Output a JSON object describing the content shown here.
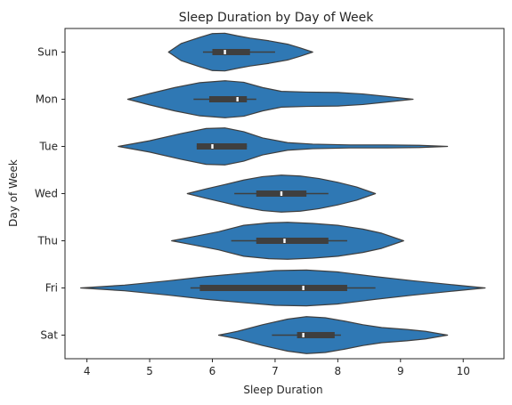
{
  "chart_data": {
    "type": "violin",
    "title": "Sleep Duration by Day of Week",
    "xlabel": "Sleep Duration",
    "ylabel": "Day of Week",
    "xlim": [
      3.65,
      10.65
    ],
    "xticks": [
      4,
      5,
      6,
      7,
      8,
      9,
      10
    ],
    "orientation": "horizontal",
    "grid": false,
    "color": "#2f78b4",
    "edge_color": "#3f3f3f",
    "categories": [
      "Sun",
      "Mon",
      "Tue",
      "Wed",
      "Thu",
      "Fri",
      "Sat"
    ],
    "violins": [
      {
        "label": "Sun",
        "min": 5.3,
        "max": 7.6,
        "profile": [
          [
            5.3,
            0.0
          ],
          [
            5.5,
            0.45
          ],
          [
            5.8,
            0.78
          ],
          [
            6.0,
            0.98
          ],
          [
            6.2,
            1.0
          ],
          [
            6.4,
            0.86
          ],
          [
            6.6,
            0.74
          ],
          [
            6.9,
            0.6
          ],
          [
            7.2,
            0.42
          ],
          [
            7.4,
            0.22
          ],
          [
            7.6,
            0.0
          ]
        ],
        "whisker_low": 5.85,
        "q1": 6.0,
        "median": 6.2,
        "q3": 6.6,
        "whisker_high": 7.0
      },
      {
        "label": "Mon",
        "min": 4.65,
        "max": 9.2,
        "profile": [
          [
            4.65,
            0.0
          ],
          [
            5.0,
            0.3
          ],
          [
            5.4,
            0.62
          ],
          [
            5.8,
            0.88
          ],
          [
            6.2,
            0.98
          ],
          [
            6.5,
            0.9
          ],
          [
            6.8,
            0.62
          ],
          [
            7.1,
            0.42
          ],
          [
            7.5,
            0.38
          ],
          [
            8.0,
            0.36
          ],
          [
            8.4,
            0.28
          ],
          [
            8.8,
            0.14
          ],
          [
            9.2,
            0.0
          ]
        ],
        "whisker_low": 5.7,
        "q1": 5.95,
        "median": 6.4,
        "q3": 6.55,
        "whisker_high": 6.7
      },
      {
        "label": "Tue",
        "min": 4.5,
        "max": 9.75,
        "profile": [
          [
            4.5,
            0.0
          ],
          [
            5.0,
            0.3
          ],
          [
            5.5,
            0.68
          ],
          [
            5.9,
            0.95
          ],
          [
            6.2,
            0.98
          ],
          [
            6.5,
            0.78
          ],
          [
            6.8,
            0.45
          ],
          [
            7.2,
            0.2
          ],
          [
            7.6,
            0.12
          ],
          [
            8.2,
            0.08
          ],
          [
            8.8,
            0.08
          ],
          [
            9.3,
            0.06
          ],
          [
            9.75,
            0.0
          ]
        ],
        "whisker_low": 5.75,
        "q1": 5.75,
        "median": 6.0,
        "q3": 6.55,
        "whisker_high": 6.55
      },
      {
        "label": "Wed",
        "min": 5.6,
        "max": 8.6,
        "profile": [
          [
            5.6,
            0.0
          ],
          [
            5.9,
            0.25
          ],
          [
            6.2,
            0.48
          ],
          [
            6.5,
            0.72
          ],
          [
            6.8,
            0.9
          ],
          [
            7.1,
            0.98
          ],
          [
            7.4,
            0.93
          ],
          [
            7.7,
            0.8
          ],
          [
            8.0,
            0.6
          ],
          [
            8.3,
            0.35
          ],
          [
            8.6,
            0.0
          ]
        ],
        "whisker_low": 6.35,
        "q1": 6.7,
        "median": 7.1,
        "q3": 7.5,
        "whisker_high": 7.85
      },
      {
        "label": "Thu",
        "min": 5.35,
        "max": 9.05,
        "profile": [
          [
            5.35,
            0.0
          ],
          [
            5.7,
            0.22
          ],
          [
            6.1,
            0.48
          ],
          [
            6.5,
            0.82
          ],
          [
            6.9,
            0.95
          ],
          [
            7.2,
            0.98
          ],
          [
            7.6,
            0.92
          ],
          [
            8.0,
            0.82
          ],
          [
            8.4,
            0.62
          ],
          [
            8.7,
            0.4
          ],
          [
            9.05,
            0.0
          ]
        ],
        "whisker_low": 6.3,
        "q1": 6.7,
        "median": 7.15,
        "q3": 7.85,
        "whisker_high": 8.15
      },
      {
        "label": "Fri",
        "min": 3.9,
        "max": 10.35,
        "profile": [
          [
            3.9,
            0.0
          ],
          [
            4.6,
            0.15
          ],
          [
            5.3,
            0.38
          ],
          [
            5.9,
            0.6
          ],
          [
            6.5,
            0.78
          ],
          [
            7.0,
            0.92
          ],
          [
            7.5,
            0.95
          ],
          [
            8.0,
            0.85
          ],
          [
            8.6,
            0.6
          ],
          [
            9.2,
            0.38
          ],
          [
            9.8,
            0.18
          ],
          [
            10.35,
            0.0
          ]
        ],
        "whisker_low": 5.65,
        "q1": 5.8,
        "median": 7.45,
        "q3": 8.15,
        "whisker_high": 8.6
      },
      {
        "label": "Sat",
        "min": 6.1,
        "max": 9.75,
        "profile": [
          [
            6.1,
            0.0
          ],
          [
            6.4,
            0.2
          ],
          [
            6.8,
            0.55
          ],
          [
            7.2,
            0.85
          ],
          [
            7.5,
            0.98
          ],
          [
            7.8,
            0.92
          ],
          [
            8.1,
            0.75
          ],
          [
            8.4,
            0.55
          ],
          [
            8.7,
            0.4
          ],
          [
            9.1,
            0.3
          ],
          [
            9.4,
            0.2
          ],
          [
            9.75,
            0.0
          ]
        ],
        "whisker_low": 6.95,
        "q1": 7.35,
        "median": 7.45,
        "q3": 7.95,
        "whisker_high": 8.05
      }
    ]
  }
}
